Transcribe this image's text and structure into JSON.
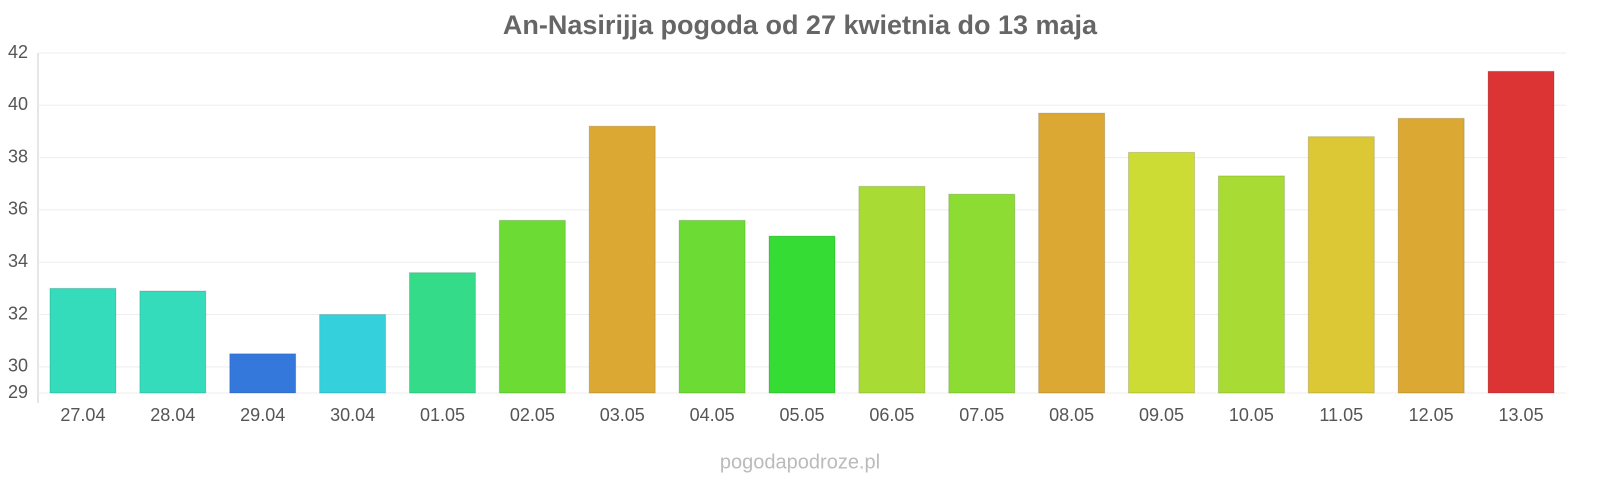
{
  "chart_data": {
    "type": "bar",
    "title": "An-Nasirijja pogoda od 27 kwietnia do 13 maja",
    "categories": [
      "27.04",
      "28.04",
      "29.04",
      "30.04",
      "01.05",
      "02.05",
      "03.05",
      "04.05",
      "05.05",
      "06.05",
      "07.05",
      "08.05",
      "09.05",
      "10.05",
      "11.05",
      "12.05",
      "13.05"
    ],
    "values": [
      33.0,
      32.9,
      30.5,
      32.0,
      33.6,
      35.6,
      39.2,
      35.6,
      35.0,
      36.9,
      36.6,
      39.7,
      38.2,
      37.3,
      38.8,
      39.5,
      41.3
    ],
    "colors": [
      "#34dcbc",
      "#34dcbc",
      "#3478dc",
      "#34d0dc",
      "#34dc8a",
      "#6cdc34",
      "#dca834",
      "#6cdc34",
      "#34dc34",
      "#a8dc34",
      "#8cdc34",
      "#dca834",
      "#ccdc34",
      "#a8dc34",
      "#dcc834",
      "#dca834",
      "#dc3434"
    ],
    "ylim": [
      29,
      42
    ],
    "yticks": [
      29,
      30,
      32,
      34,
      36,
      38,
      40,
      42
    ],
    "grid": true,
    "source": "pogodapodroze.pl"
  }
}
